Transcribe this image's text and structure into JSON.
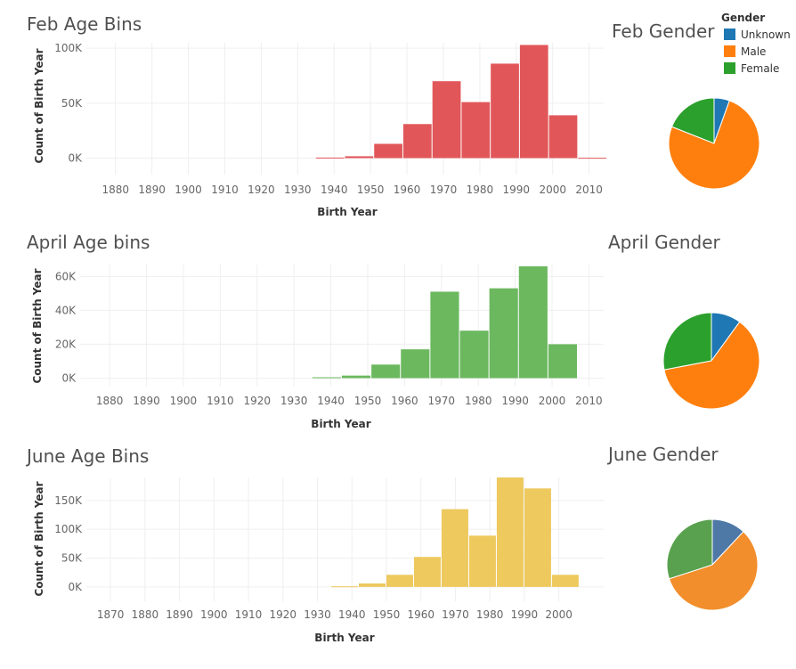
{
  "colors": {
    "feb_bar": "#e15759",
    "april_bar": "#6cb85f",
    "june_bar": "#edc95e",
    "unknown": "#1f77b4",
    "male": "#ff7f0e",
    "female": "#2ca02c",
    "june_unknown": "#4e79a7",
    "june_male": "#f28e2b",
    "june_female": "#59a14f"
  },
  "legend": {
    "title": "Gender",
    "items": [
      {
        "label": "Unknown",
        "color_key": "unknown"
      },
      {
        "label": "Male",
        "color_key": "male"
      },
      {
        "label": "Female",
        "color_key": "female"
      }
    ]
  },
  "chart_data": [
    {
      "id": "feb_hist",
      "type": "bar",
      "title": "Feb Age Bins",
      "xlabel": "Birth Year",
      "ylabel": "Count of Birth Year",
      "color_key": "feb_bar",
      "xlim": [
        1872,
        2014
      ],
      "ylim": [
        -15000,
        105000
      ],
      "x_ticks": [
        1880,
        1890,
        1900,
        1910,
        1920,
        1930,
        1940,
        1950,
        1960,
        1970,
        1980,
        1990,
        2000,
        2010
      ],
      "y_ticks": [
        {
          "value": 0,
          "label": "0K"
        },
        {
          "value": 50000,
          "label": "50K"
        },
        {
          "value": 100000,
          "label": "100K"
        }
      ],
      "bins": [
        {
          "x0": 1935,
          "x1": 1943,
          "value": 500
        },
        {
          "x0": 1943,
          "x1": 1951,
          "value": 1700
        },
        {
          "x0": 1951,
          "x1": 1959,
          "value": 13000
        },
        {
          "x0": 1959,
          "x1": 1967,
          "value": 31000
        },
        {
          "x0": 1967,
          "x1": 1975,
          "value": 70000
        },
        {
          "x0": 1975,
          "x1": 1983,
          "value": 51000
        },
        {
          "x0": 1983,
          "x1": 1991,
          "value": 86000
        },
        {
          "x0": 1991,
          "x1": 1999,
          "value": 103000
        },
        {
          "x0": 1999,
          "x1": 2007,
          "value": 39000
        },
        {
          "x0": 2007,
          "x1": 2015,
          "value": 300
        }
      ]
    },
    {
      "id": "april_hist",
      "type": "bar",
      "title": "April Age bins",
      "xlabel": "Birth Year",
      "ylabel": "Count of Birth Year",
      "color_key": "april_bar",
      "xlim": [
        1872,
        2014
      ],
      "ylim": [
        -5000,
        67000
      ],
      "x_ticks": [
        1880,
        1890,
        1900,
        1910,
        1920,
        1930,
        1940,
        1950,
        1960,
        1970,
        1980,
        1990,
        2000,
        2010
      ],
      "y_ticks": [
        {
          "value": 0,
          "label": "0K"
        },
        {
          "value": 20000,
          "label": "20K"
        },
        {
          "value": 40000,
          "label": "40K"
        },
        {
          "value": 60000,
          "label": "60K"
        }
      ],
      "bins": [
        {
          "x0": 1935,
          "x1": 1943,
          "value": 500
        },
        {
          "x0": 1943,
          "x1": 1951,
          "value": 1500
        },
        {
          "x0": 1951,
          "x1": 1959,
          "value": 8000
        },
        {
          "x0": 1959,
          "x1": 1967,
          "value": 17000
        },
        {
          "x0": 1967,
          "x1": 1975,
          "value": 51000
        },
        {
          "x0": 1975,
          "x1": 1983,
          "value": 28000
        },
        {
          "x0": 1983,
          "x1": 1991,
          "value": 53000
        },
        {
          "x0": 1991,
          "x1": 1999,
          "value": 66000
        },
        {
          "x0": 1999,
          "x1": 2007,
          "value": 20000
        }
      ]
    },
    {
      "id": "june_hist",
      "type": "bar",
      "title": "June Age Bins",
      "xlabel": "Birth Year",
      "ylabel": "Count of Birth Year",
      "color_key": "june_bar",
      "xlim": [
        1863,
        2013
      ],
      "ylim": [
        -25000,
        190000
      ],
      "x_ticks": [
        1870,
        1880,
        1890,
        1900,
        1910,
        1920,
        1930,
        1940,
        1950,
        1960,
        1970,
        1980,
        1990,
        2000
      ],
      "y_ticks": [
        {
          "value": 0,
          "label": "0K"
        },
        {
          "value": 50000,
          "label": "50K"
        },
        {
          "value": 100000,
          "label": "100K"
        },
        {
          "value": 150000,
          "label": "150K"
        }
      ],
      "bins": [
        {
          "x0": 1934,
          "x1": 1942,
          "value": 1000
        },
        {
          "x0": 1942,
          "x1": 1950,
          "value": 6000
        },
        {
          "x0": 1950,
          "x1": 1958,
          "value": 21000
        },
        {
          "x0": 1958,
          "x1": 1966,
          "value": 52000
        },
        {
          "x0": 1966,
          "x1": 1974,
          "value": 135000
        },
        {
          "x0": 1974,
          "x1": 1982,
          "value": 89000
        },
        {
          "x0": 1982,
          "x1": 1990,
          "value": 190000
        },
        {
          "x0": 1990,
          "x1": 1998,
          "value": 171000
        },
        {
          "x0": 1998,
          "x1": 2006,
          "value": 21000
        }
      ]
    },
    {
      "id": "feb_pie",
      "type": "pie",
      "title": "Feb Gender",
      "slices": [
        {
          "label": "Unknown",
          "value": 5.5,
          "color_key": "unknown"
        },
        {
          "label": "Male",
          "value": 75.5,
          "color_key": "male"
        },
        {
          "label": "Female",
          "value": 19,
          "color_key": "female"
        }
      ]
    },
    {
      "id": "april_pie",
      "type": "pie",
      "title": "April Gender",
      "slices": [
        {
          "label": "Unknown",
          "value": 10,
          "color_key": "unknown"
        },
        {
          "label": "Male",
          "value": 62,
          "color_key": "male"
        },
        {
          "label": "Female",
          "value": 28,
          "color_key": "female"
        }
      ]
    },
    {
      "id": "june_pie",
      "type": "pie",
      "title": "June Gender",
      "slices": [
        {
          "label": "Unknown",
          "value": 12,
          "color_key": "june_unknown"
        },
        {
          "label": "Male",
          "value": 58,
          "color_key": "june_male"
        },
        {
          "label": "Female",
          "value": 30,
          "color_key": "june_female"
        }
      ]
    }
  ]
}
